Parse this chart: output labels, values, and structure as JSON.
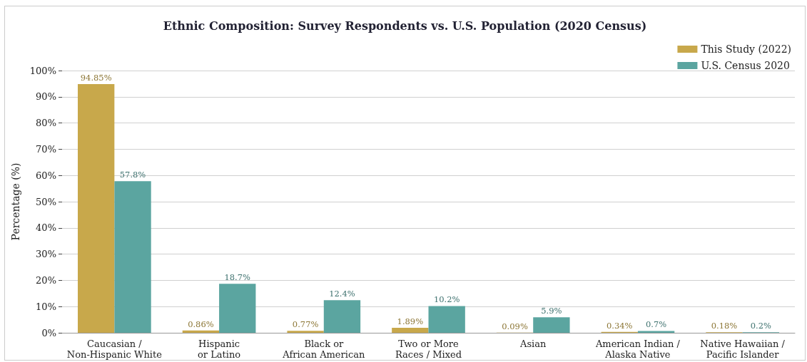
{
  "chart_data": {
    "type": "bar",
    "title": "Ethnic Composition: Survey Respondents vs. U.S. Population (2020 Census)",
    "ylabel": "Percentage (%)",
    "categories": [
      "Caucasian /\nNon-Hispanic White",
      "Hispanic\nor Latino",
      "Black or\nAfrican American",
      "Two or More\nRaces / Mixed",
      "Asian",
      "American Indian /\nAlaska Native",
      "Native Hawaiian /\nPacific Islander"
    ],
    "series": [
      {
        "name": "This Study (2022)",
        "color": "#c8a84b",
        "values": [
          94.85,
          0.86,
          0.77,
          1.89,
          0.09,
          0.34,
          0.18
        ],
        "value_labels": [
          "94.85%",
          "0.86%",
          "0.77%",
          "1.89%",
          "0.09%",
          "0.34%",
          "0.18%"
        ]
      },
      {
        "name": "U.S. Census 2020",
        "color": "#5ba5a0",
        "values": [
          57.8,
          18.7,
          12.4,
          10.2,
          5.9,
          0.7,
          0.2
        ],
        "value_labels": [
          "57.8%",
          "18.7%",
          "12.4%",
          "10.2%",
          "5.9%",
          "0.7%",
          "0.2%"
        ]
      }
    ],
    "ylim": [
      0,
      100
    ],
    "yticks": [
      {
        "value": 0,
        "label": "0%"
      },
      {
        "value": 10,
        "label": "10%"
      },
      {
        "value": 20,
        "label": "20%"
      },
      {
        "value": 30,
        "label": "30%"
      },
      {
        "value": 40,
        "label": "40%"
      },
      {
        "value": 50,
        "label": "50%"
      },
      {
        "value": 60,
        "label": "60%"
      },
      {
        "value": 70,
        "label": "70%"
      },
      {
        "value": 80,
        "label": "80%"
      },
      {
        "value": 90,
        "label": "90%"
      },
      {
        "value": 100,
        "label": "100%"
      }
    ],
    "grid": "y",
    "legend": "top right"
  }
}
